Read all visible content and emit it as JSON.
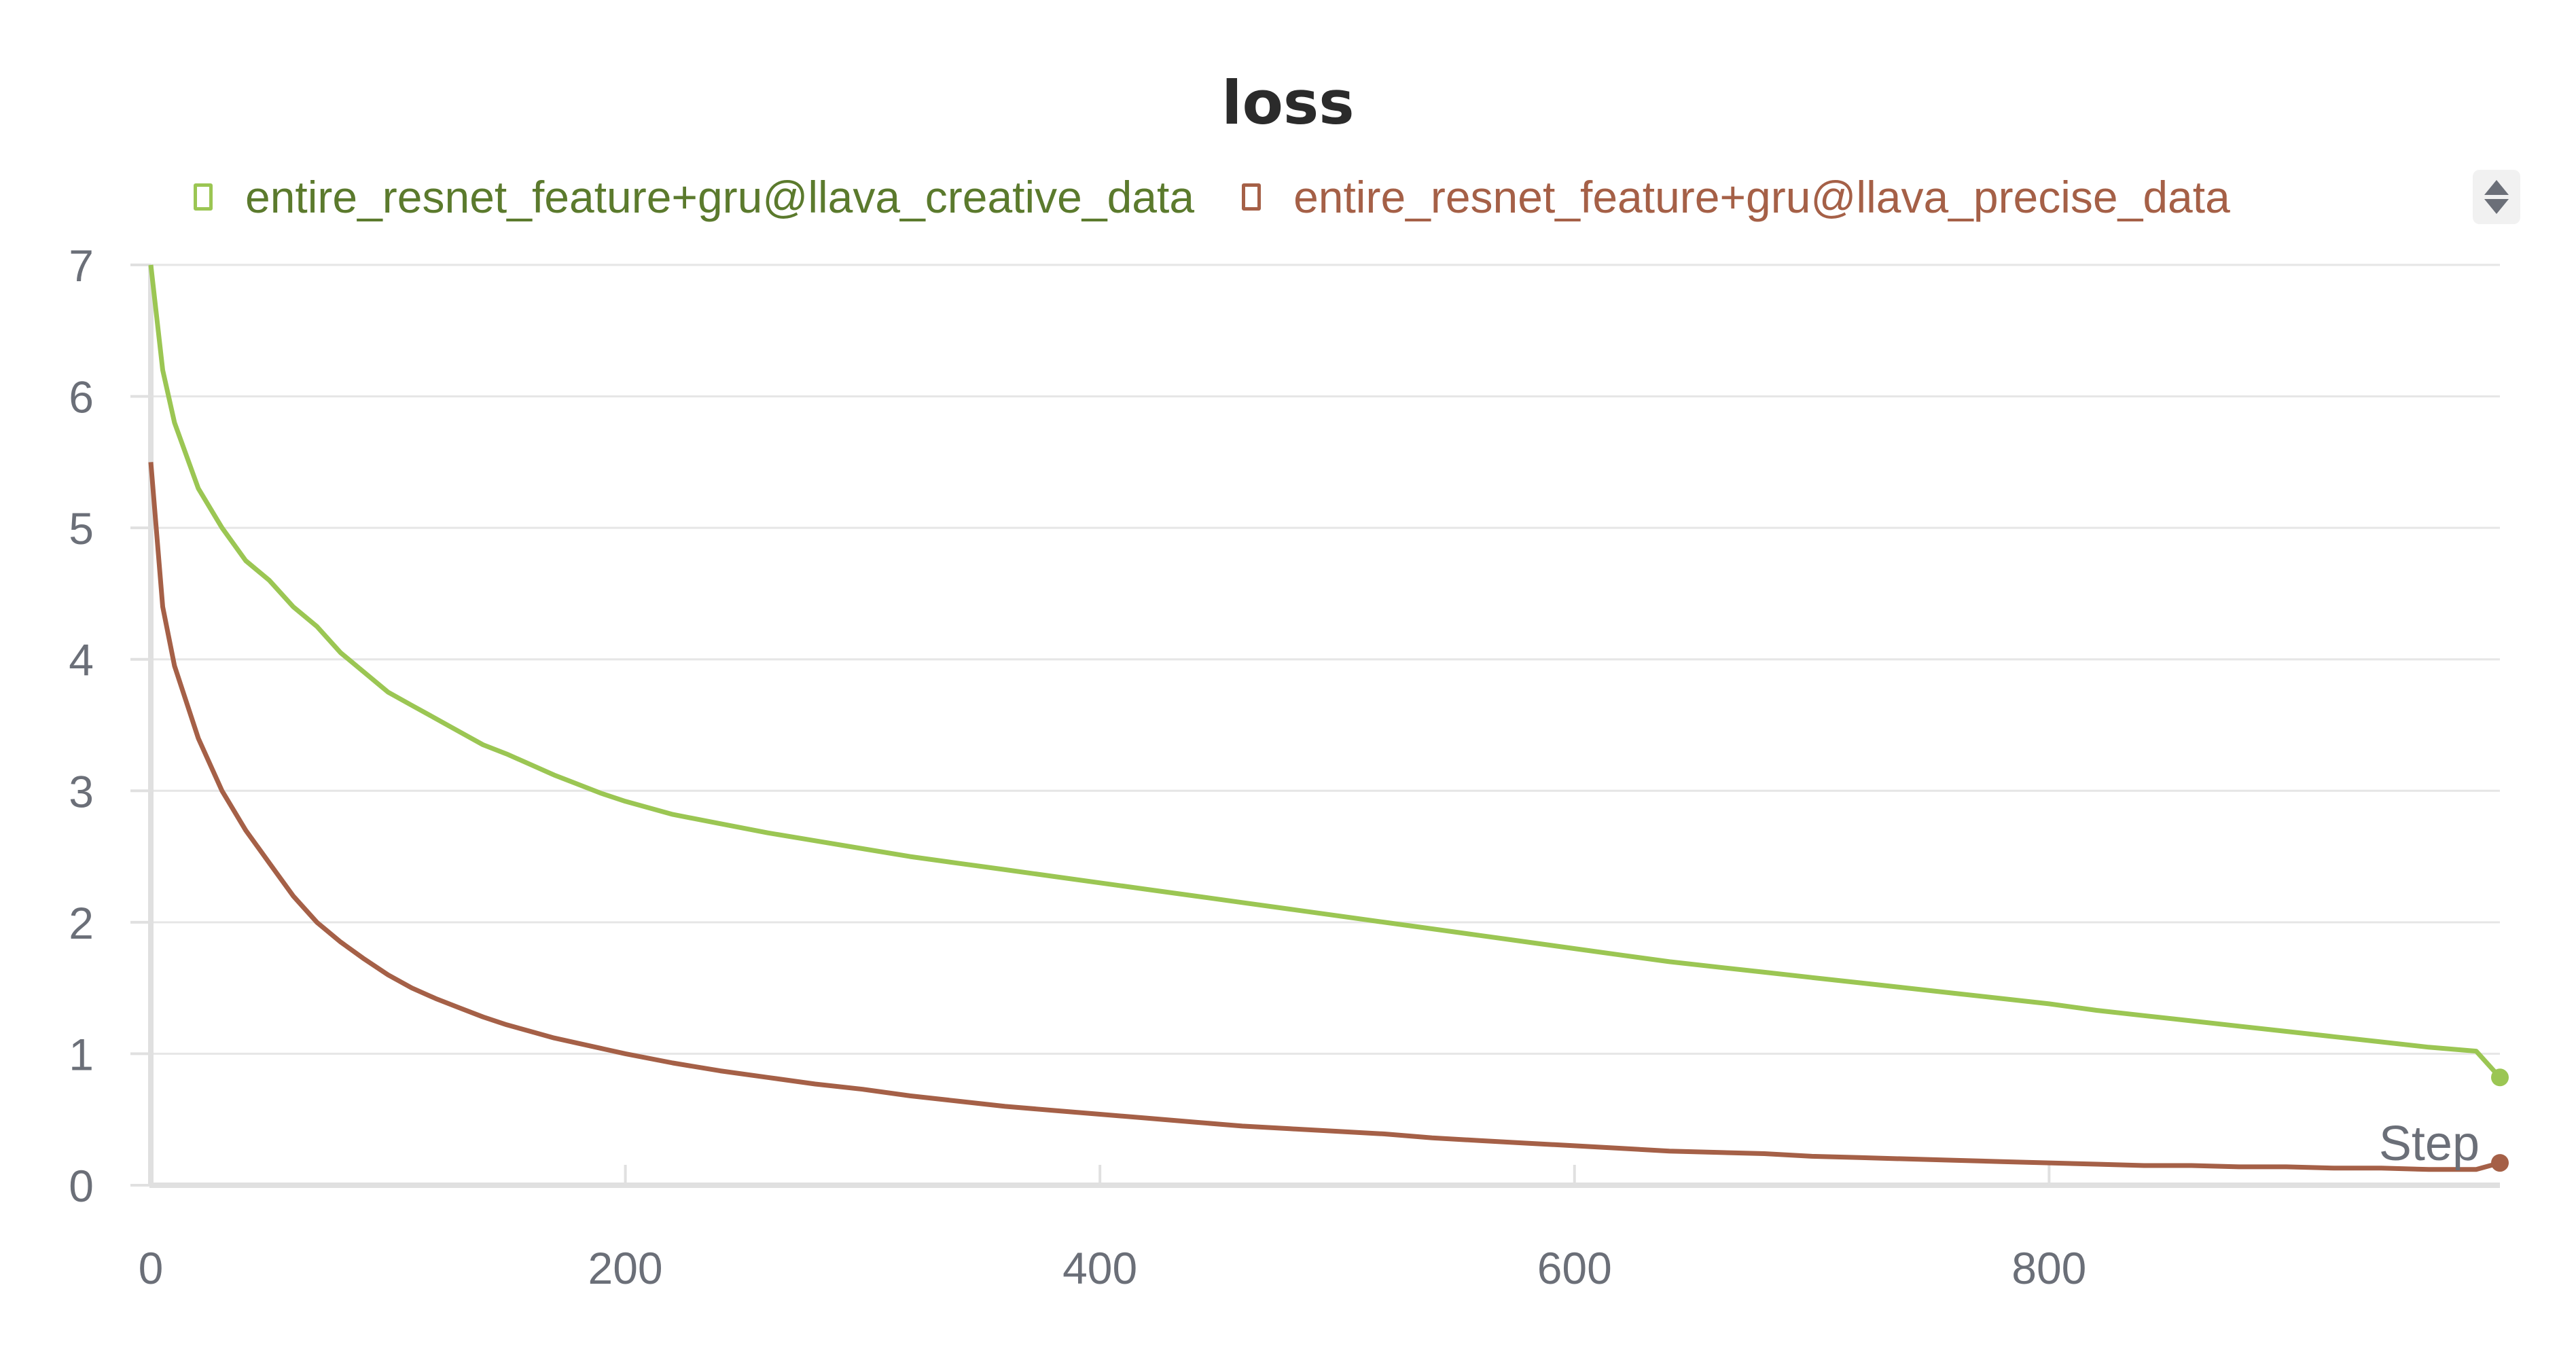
{
  "chart_data": {
    "type": "line",
    "title": "loss",
    "xlabel": "Step",
    "ylabel": "",
    "xlim": [
      0,
      990
    ],
    "ylim": [
      0,
      7
    ],
    "x_ticks": [
      0,
      200,
      400,
      600,
      800
    ],
    "y_ticks": [
      0,
      1,
      2,
      3,
      4,
      5,
      6,
      7
    ],
    "grid": true,
    "legend_position": "top",
    "series": [
      {
        "name": "entire_resnet_feature+gru@llava_creative_data",
        "color": "#9bc653",
        "x": [
          0,
          5,
          10,
          20,
          30,
          40,
          50,
          60,
          70,
          80,
          90,
          100,
          110,
          120,
          130,
          140,
          150,
          160,
          170,
          180,
          190,
          200,
          220,
          240,
          260,
          280,
          300,
          320,
          340,
          360,
          380,
          400,
          420,
          440,
          460,
          480,
          500,
          520,
          540,
          560,
          580,
          600,
          620,
          640,
          660,
          680,
          700,
          720,
          740,
          760,
          780,
          800,
          820,
          840,
          860,
          880,
          900,
          920,
          940,
          960,
          980,
          990
        ],
        "values": [
          7.0,
          6.2,
          5.8,
          5.3,
          5.0,
          4.75,
          4.6,
          4.4,
          4.25,
          4.05,
          3.9,
          3.75,
          3.65,
          3.55,
          3.45,
          3.35,
          3.28,
          3.2,
          3.12,
          3.05,
          2.98,
          2.92,
          2.82,
          2.75,
          2.68,
          2.62,
          2.56,
          2.5,
          2.45,
          2.4,
          2.35,
          2.3,
          2.25,
          2.2,
          2.15,
          2.1,
          2.05,
          2.0,
          1.95,
          1.9,
          1.85,
          1.8,
          1.75,
          1.7,
          1.66,
          1.62,
          1.58,
          1.54,
          1.5,
          1.46,
          1.42,
          1.38,
          1.33,
          1.29,
          1.25,
          1.21,
          1.17,
          1.13,
          1.09,
          1.05,
          1.02,
          0.82
        ]
      },
      {
        "name": "entire_resnet_feature+gru@llava_precise_data",
        "color": "#a56047",
        "x": [
          0,
          5,
          10,
          20,
          30,
          40,
          50,
          60,
          70,
          80,
          90,
          100,
          110,
          120,
          130,
          140,
          150,
          160,
          170,
          180,
          190,
          200,
          220,
          240,
          260,
          280,
          300,
          320,
          340,
          360,
          380,
          400,
          420,
          440,
          460,
          480,
          500,
          520,
          540,
          560,
          580,
          600,
          620,
          640,
          660,
          680,
          700,
          720,
          740,
          760,
          780,
          800,
          820,
          840,
          860,
          880,
          900,
          920,
          940,
          960,
          980,
          990
        ],
        "values": [
          5.5,
          4.4,
          3.95,
          3.4,
          3.0,
          2.7,
          2.45,
          2.2,
          2.0,
          1.85,
          1.72,
          1.6,
          1.5,
          1.42,
          1.35,
          1.28,
          1.22,
          1.17,
          1.12,
          1.08,
          1.04,
          1.0,
          0.93,
          0.87,
          0.82,
          0.77,
          0.73,
          0.68,
          0.64,
          0.6,
          0.57,
          0.54,
          0.51,
          0.48,
          0.45,
          0.43,
          0.41,
          0.39,
          0.36,
          0.34,
          0.32,
          0.3,
          0.28,
          0.26,
          0.25,
          0.24,
          0.22,
          0.21,
          0.2,
          0.19,
          0.18,
          0.17,
          0.16,
          0.15,
          0.15,
          0.14,
          0.14,
          0.13,
          0.13,
          0.12,
          0.12,
          0.17
        ]
      }
    ]
  }
}
